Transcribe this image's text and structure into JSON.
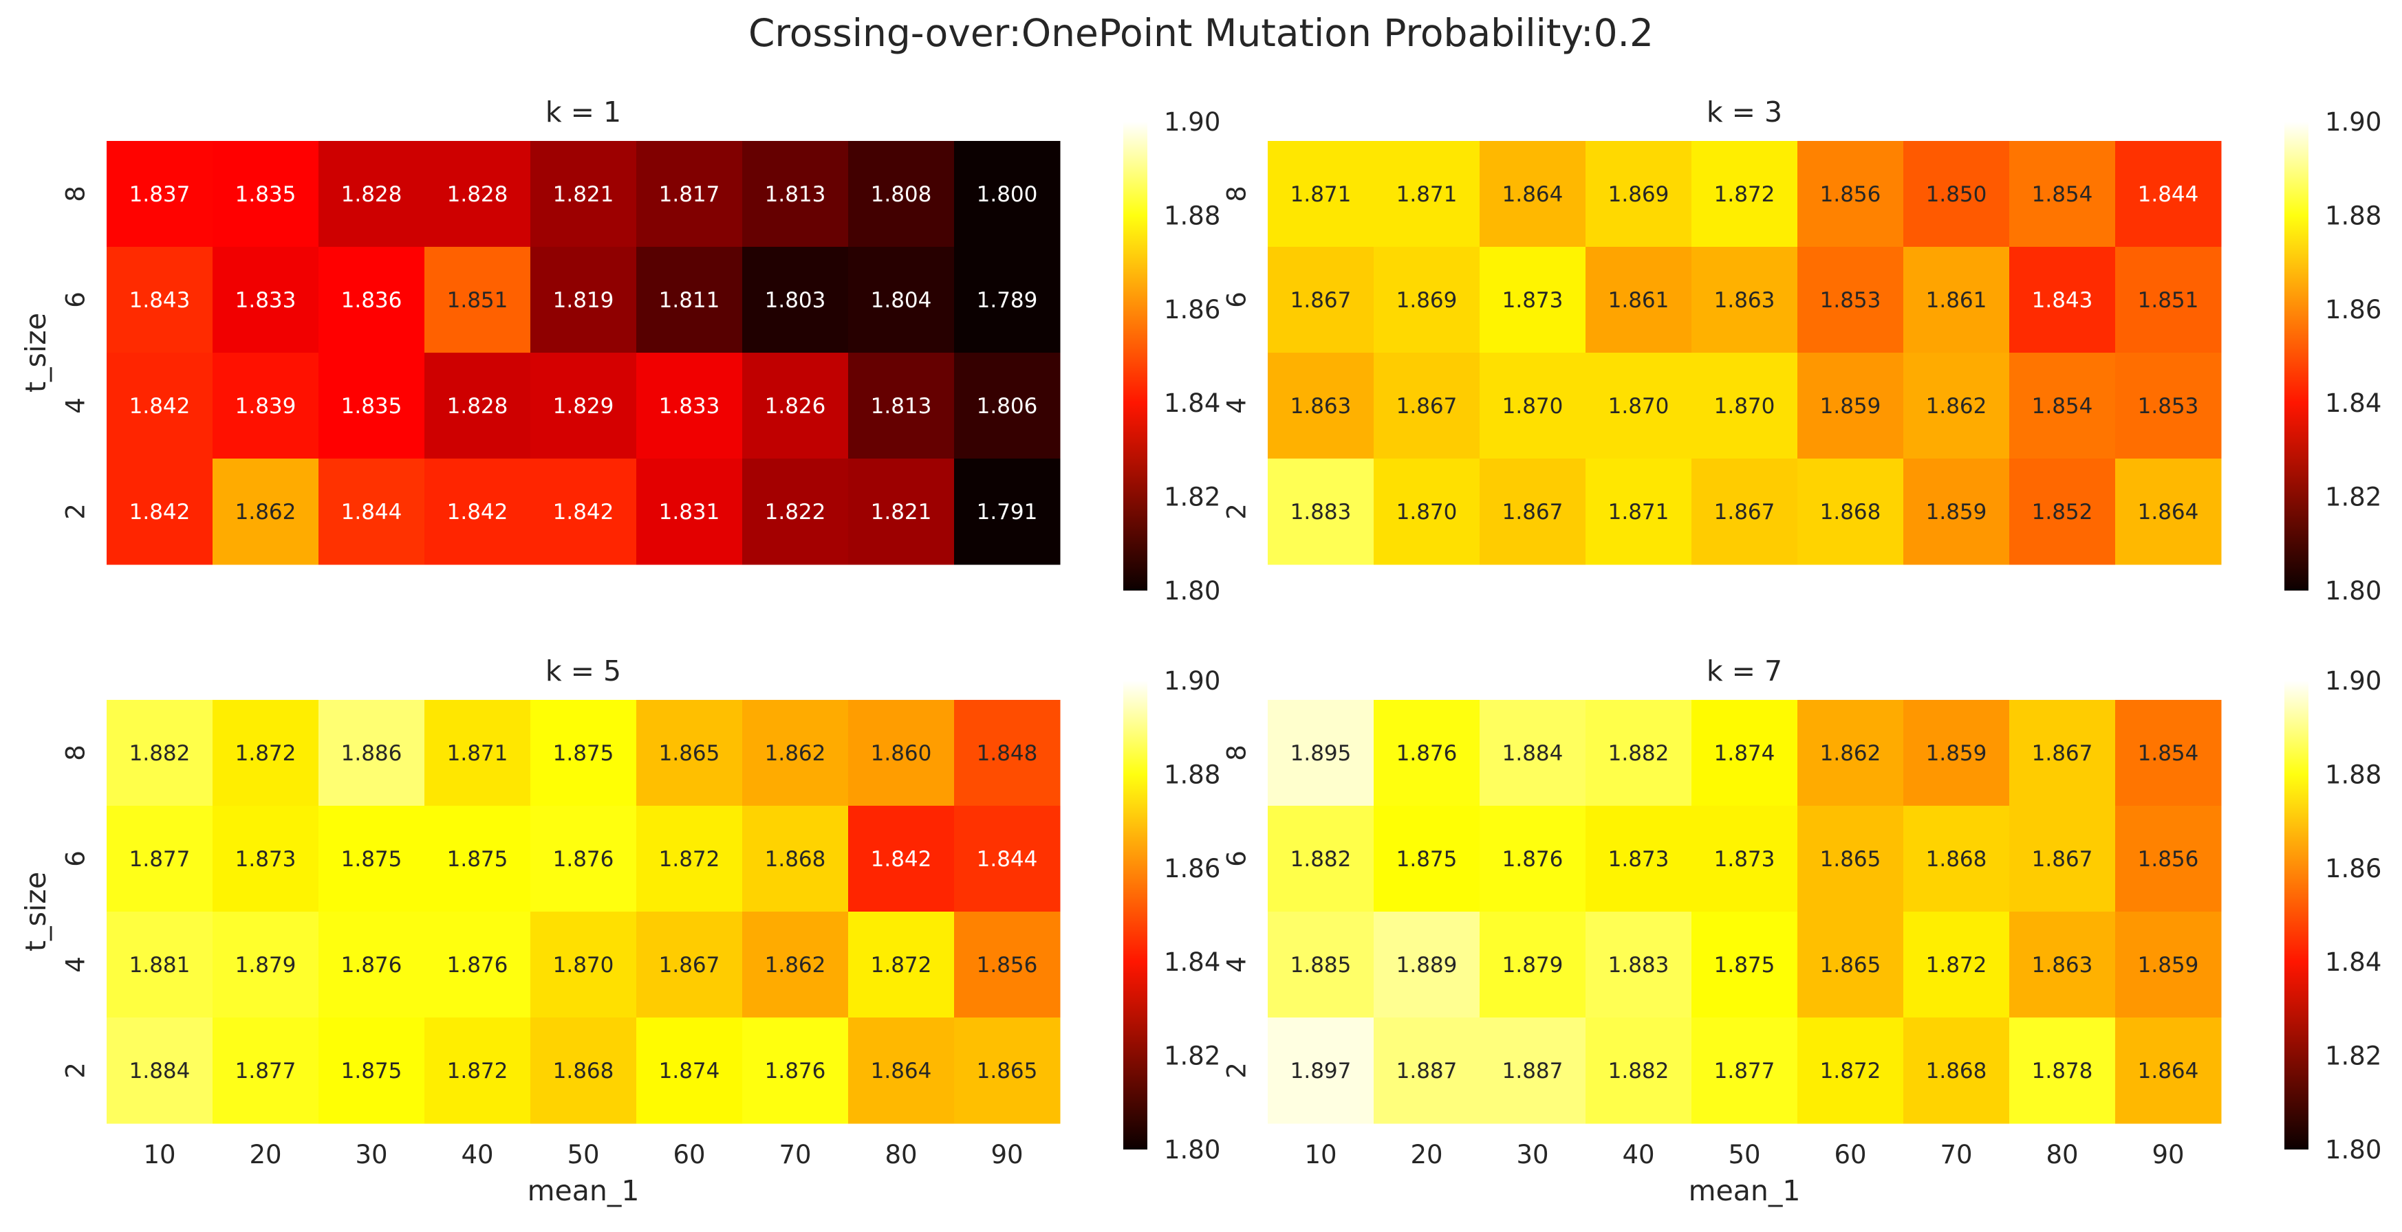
{
  "title": "Crossing-over:OnePoint Mutation Probability:0.2",
  "chart_data": [
    {
      "type": "heatmap",
      "title": "k = 1",
      "xlabel": "",
      "ylabel": "t_size",
      "x": [
        "10",
        "20",
        "30",
        "40",
        "50",
        "60",
        "70",
        "80",
        "90"
      ],
      "y": [
        "8",
        "6",
        "4",
        "2"
      ],
      "values": [
        [
          1.837,
          1.835,
          1.828,
          1.828,
          1.821,
          1.817,
          1.813,
          1.808,
          1.8
        ],
        [
          1.843,
          1.833,
          1.836,
          1.851,
          1.819,
          1.811,
          1.803,
          1.804,
          1.789
        ],
        [
          1.842,
          1.839,
          1.835,
          1.828,
          1.829,
          1.833,
          1.826,
          1.813,
          1.806
        ],
        [
          1.842,
          1.862,
          1.844,
          1.842,
          1.842,
          1.831,
          1.822,
          1.821,
          1.791
        ]
      ],
      "colorbar": {
        "range": [
          1.8,
          1.9
        ],
        "ticks": [
          "1.80",
          "1.82",
          "1.84",
          "1.86",
          "1.88",
          "1.90"
        ]
      },
      "colormap": "hot"
    },
    {
      "type": "heatmap",
      "title": "k = 3",
      "xlabel": "",
      "ylabel": "",
      "x": [
        "10",
        "20",
        "30",
        "40",
        "50",
        "60",
        "70",
        "80",
        "90"
      ],
      "y": [
        "8",
        "6",
        "4",
        "2"
      ],
      "values": [
        [
          1.871,
          1.871,
          1.864,
          1.869,
          1.872,
          1.856,
          1.85,
          1.854,
          1.844
        ],
        [
          1.867,
          1.869,
          1.873,
          1.861,
          1.863,
          1.853,
          1.861,
          1.843,
          1.851
        ],
        [
          1.863,
          1.867,
          1.87,
          1.87,
          1.87,
          1.859,
          1.862,
          1.854,
          1.853
        ],
        [
          1.883,
          1.87,
          1.867,
          1.871,
          1.867,
          1.868,
          1.859,
          1.852,
          1.864
        ]
      ],
      "colorbar": {
        "range": [
          1.8,
          1.9
        ],
        "ticks": [
          "1.80",
          "1.82",
          "1.84",
          "1.86",
          "1.88",
          "1.90"
        ]
      },
      "colormap": "hot"
    },
    {
      "type": "heatmap",
      "title": "k = 5",
      "xlabel": "mean_1",
      "ylabel": "t_size",
      "x": [
        "10",
        "20",
        "30",
        "40",
        "50",
        "60",
        "70",
        "80",
        "90"
      ],
      "y": [
        "8",
        "6",
        "4",
        "2"
      ],
      "values": [
        [
          1.882,
          1.872,
          1.886,
          1.871,
          1.875,
          1.865,
          1.862,
          1.86,
          1.848
        ],
        [
          1.877,
          1.873,
          1.875,
          1.875,
          1.876,
          1.872,
          1.868,
          1.842,
          1.844
        ],
        [
          1.881,
          1.879,
          1.876,
          1.876,
          1.87,
          1.867,
          1.862,
          1.872,
          1.856
        ],
        [
          1.884,
          1.877,
          1.875,
          1.872,
          1.868,
          1.874,
          1.876,
          1.864,
          1.865
        ]
      ],
      "colorbar": {
        "range": [
          1.8,
          1.9
        ],
        "ticks": [
          "1.80",
          "1.82",
          "1.84",
          "1.86",
          "1.88",
          "1.90"
        ]
      },
      "colormap": "hot"
    },
    {
      "type": "heatmap",
      "title": "k = 7",
      "xlabel": "mean_1",
      "ylabel": "",
      "x": [
        "10",
        "20",
        "30",
        "40",
        "50",
        "60",
        "70",
        "80",
        "90"
      ],
      "y": [
        "8",
        "6",
        "4",
        "2"
      ],
      "values": [
        [
          1.895,
          1.876,
          1.884,
          1.882,
          1.874,
          1.862,
          1.859,
          1.867,
          1.854
        ],
        [
          1.882,
          1.875,
          1.876,
          1.873,
          1.873,
          1.865,
          1.868,
          1.867,
          1.856
        ],
        [
          1.885,
          1.889,
          1.879,
          1.883,
          1.875,
          1.865,
          1.872,
          1.863,
          1.859
        ],
        [
          1.897,
          1.887,
          1.887,
          1.882,
          1.877,
          1.872,
          1.868,
          1.878,
          1.864
        ]
      ],
      "colorbar": {
        "range": [
          1.8,
          1.9
        ],
        "ticks": [
          "1.80",
          "1.82",
          "1.84",
          "1.86",
          "1.88",
          "1.90"
        ]
      },
      "colormap": "hot"
    }
  ]
}
